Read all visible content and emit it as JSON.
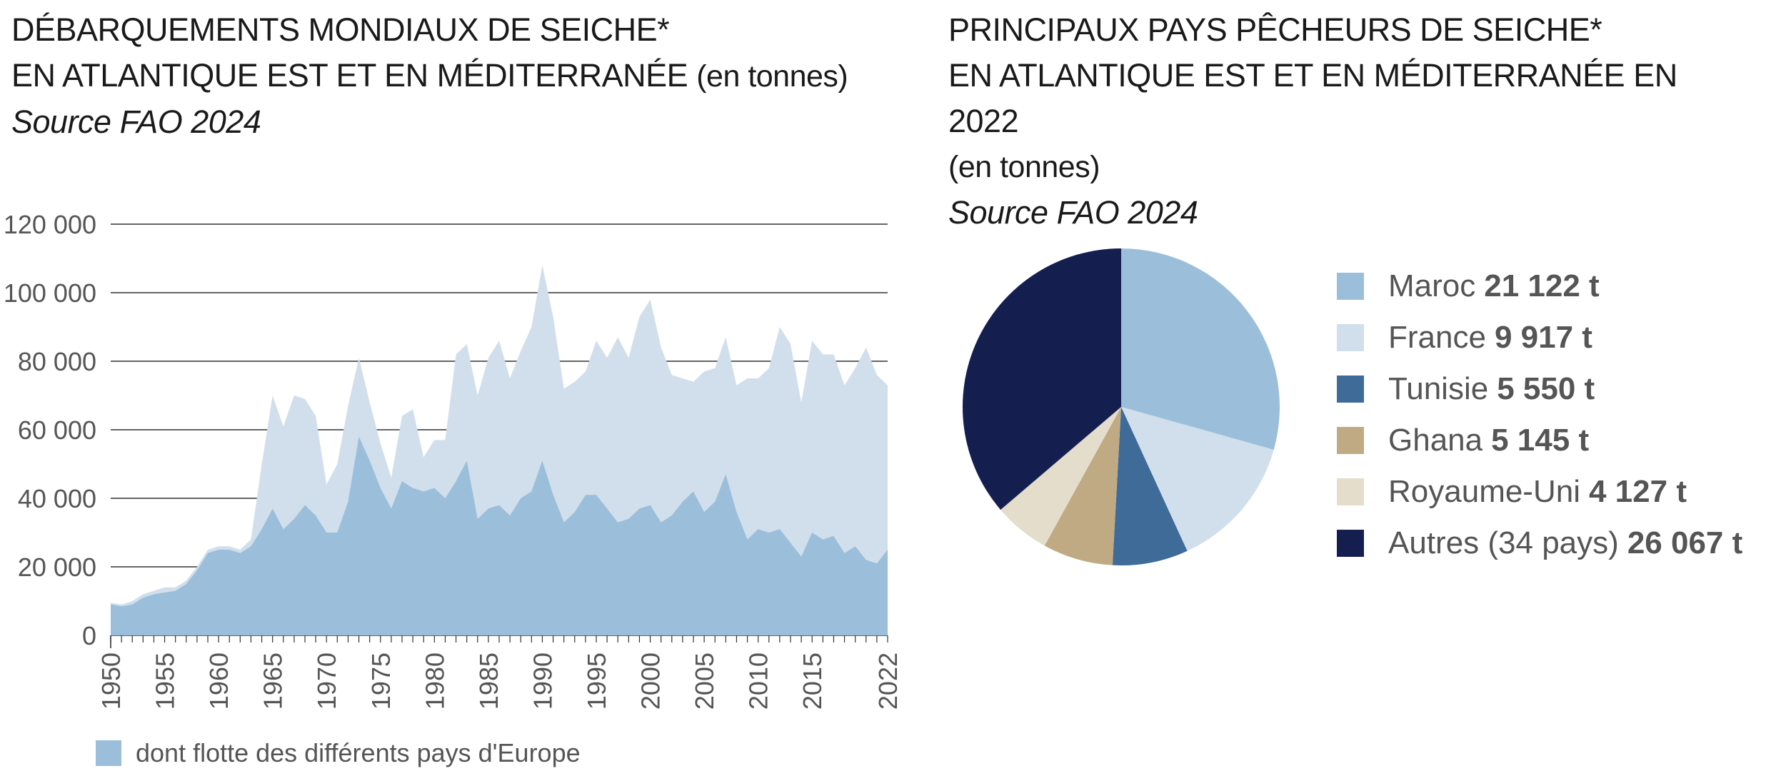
{
  "left": {
    "title_line1": "DÉBARQUEMENTS MONDIAUX DE SEICHE*",
    "title_line2": "EN ATLANTIQUE EST ET EN MÉDITERRANÉE",
    "title_unit": "(en tonnes)",
    "source": "Source FAO 2024"
  },
  "right": {
    "title_line1": "PRINCIPAUX PAYS PÊCHEURS DE SEICHE*",
    "title_line2": "EN ATLANTIQUE EST ET EN MÉDITERRANÉE EN 2022",
    "title_unit": "(en tonnes)",
    "source": "Source FAO 2024"
  },
  "colors": {
    "total": "#d1dfec",
    "europe": "#9bbfdb",
    "grid": "#333333"
  },
  "chart_data": [
    {
      "type": "area",
      "x_tick_labels": [
        "1950",
        "1955",
        "1960",
        "1965",
        "1970",
        "1975",
        "1980",
        "1985",
        "1990",
        "1995",
        "2000",
        "2005",
        "2010",
        "2015",
        "2022"
      ],
      "y_tick_labels": [
        "0",
        "20 000",
        "40 000",
        "60 000",
        "80 000",
        "100 000",
        "120 000"
      ],
      "ylim": [
        0,
        120000
      ],
      "xlim": [
        1950,
        2022
      ],
      "grid": true,
      "legend_label": "dont flotte des différents pays d'Europe",
      "x": [
        1950,
        1951,
        1952,
        1953,
        1954,
        1955,
        1956,
        1957,
        1958,
        1959,
        1960,
        1961,
        1962,
        1963,
        1964,
        1965,
        1966,
        1967,
        1968,
        1969,
        1970,
        1971,
        1972,
        1973,
        1974,
        1975,
        1976,
        1977,
        1978,
        1979,
        1980,
        1981,
        1982,
        1983,
        1984,
        1985,
        1986,
        1987,
        1988,
        1989,
        1990,
        1991,
        1992,
        1993,
        1994,
        1995,
        1996,
        1997,
        1998,
        1999,
        2000,
        2001,
        2002,
        2003,
        2004,
        2005,
        2006,
        2007,
        2008,
        2009,
        2010,
        2011,
        2012,
        2013,
        2014,
        2015,
        2016,
        2017,
        2018,
        2019,
        2020,
        2021,
        2022
      ],
      "series": [
        {
          "values": [
            9500,
            9000,
            10000,
            12000,
            13000,
            14000,
            14000,
            16000,
            20000,
            25000,
            26000,
            26000,
            25000,
            28000,
            50000,
            70000,
            61000,
            70000,
            69000,
            64000,
            44000,
            50000,
            67000,
            81000,
            68000,
            56000,
            46000,
            64000,
            66000,
            52000,
            57000,
            57000,
            82000,
            85000,
            70000,
            81000,
            86000,
            75000,
            83000,
            90000,
            108000,
            93000,
            72000,
            74000,
            77000,
            86000,
            81000,
            87000,
            81000,
            93000,
            98000,
            84000,
            76000,
            75000,
            74000,
            77000,
            78000,
            87000,
            73000,
            75000,
            75000,
            78000,
            90000,
            85000,
            68000,
            86000,
            82000,
            82000,
            73000,
            78000,
            84000,
            76000,
            73000
          ]
        },
        {
          "name": "dont flotte des différents pays d'Europe",
          "values": [
            9000,
            8500,
            9000,
            11000,
            12000,
            12500,
            13000,
            15000,
            19000,
            24000,
            25000,
            25000,
            24000,
            26000,
            31000,
            37000,
            31000,
            34000,
            38000,
            35000,
            30000,
            30000,
            39000,
            58000,
            51000,
            43000,
            37000,
            45000,
            43000,
            42000,
            43000,
            40000,
            45000,
            51000,
            34000,
            37000,
            38000,
            35000,
            40000,
            42000,
            51000,
            41000,
            33000,
            36000,
            41000,
            41000,
            37000,
            33000,
            34000,
            37000,
            38000,
            33000,
            35000,
            39000,
            42000,
            36000,
            39000,
            47000,
            36000,
            28000,
            31000,
            30000,
            31000,
            27000,
            23000,
            30000,
            28000,
            29000,
            24000,
            26000,
            22000,
            21000,
            25000
          ]
        }
      ]
    },
    {
      "type": "pie",
      "title": "PRINCIPAUX PAYS PÊCHEURS DE SEICHE* EN ATLANTIQUE EST ET EN MÉDITERRANÉE EN 2022",
      "slices": [
        {
          "label": "Maroc",
          "value": 21122,
          "value_text": "21 122 t",
          "color": "#9bbfdb"
        },
        {
          "label": "France",
          "value": 9917,
          "value_text": "9 917 t",
          "color": "#d1dfec"
        },
        {
          "label": "Tunisie",
          "value": 5550,
          "value_text": "5 550 t",
          "color": "#3f6b99"
        },
        {
          "label": "Ghana",
          "value": 5145,
          "value_text": "5 145 t",
          "color": "#bfaa84"
        },
        {
          "label": "Royaume-Uni",
          "value": 4127,
          "value_text": "4 127 t",
          "color": "#e5ddcb"
        },
        {
          "label": "Autres (34 pays)",
          "value": 26067,
          "value_text": "26 067 t",
          "color": "#141f4f"
        }
      ]
    }
  ]
}
